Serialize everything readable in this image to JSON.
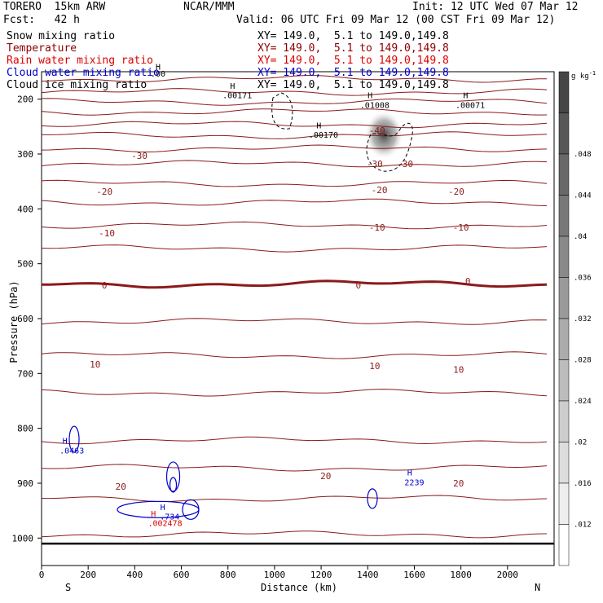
{
  "header": {
    "model": "TORERO  15km ARW",
    "org": "NCAR/MMM",
    "init": "Init: 12 UTC Wed 07 Mar 12",
    "fcst": "Fcst:   42 h",
    "valid": "Valid: 06 UTC Fri 09 Mar 12 (00 CST Fri 09 Mar 12)"
  },
  "fields": [
    {
      "name": "Snow mixing ratio",
      "xy": "XY= 149.0,  5.1 to 149.0,149.8",
      "color": "#000000"
    },
    {
      "name": "Temperature",
      "xy": "XY= 149.0,  5.1 to 149.0,149.8",
      "color": "#8b0000"
    },
    {
      "name": "Rain water mixing ratio",
      "xy": "XY= 149.0,  5.1 to 149.0,149.8",
      "color": "#dd0000"
    },
    {
      "name": "Cloud water mixing ratio",
      "xy": "XY= 149.0,  5.1 to 149.0,149.8",
      "color": "#0000cc"
    },
    {
      "name": "Cloud ice mixing ratio",
      "xy": "XY= 149.0,  5.1 to 149.0,149.8",
      "color": "#000000"
    }
  ],
  "chart_data": {
    "type": "contour",
    "xlabel": "Distance (km)",
    "ylabel": "Pressure (hPa)",
    "xlim": [
      0,
      2200
    ],
    "ylim": [
      1050,
      150
    ],
    "xticks": [
      0,
      200,
      400,
      600,
      800,
      1000,
      1200,
      1400,
      1600,
      1800,
      2000
    ],
    "yticks": [
      200,
      300,
      400,
      500,
      600,
      700,
      800,
      900,
      1000
    ],
    "x_end_labels": {
      "left": "S",
      "right": "N"
    },
    "colorbar": {
      "unit": "g kg",
      "unit_exp": "-1",
      "ticks": [
        ".012",
        ".016",
        ".02",
        ".024",
        ".028",
        ".032",
        ".036",
        ".04",
        ".044",
        ".048"
      ]
    },
    "temperature_levels_hpa": [
      163,
      187,
      205,
      223,
      246,
      266,
      290,
      318,
      354,
      388,
      430,
      472,
      537,
      605,
      667,
      735,
      822,
      872,
      928,
      993
    ],
    "temperature_labels": [
      {
        "text": "-40",
        "x": 1440,
        "p": 257
      },
      {
        "text": "-30",
        "x": 420,
        "p": 303
      },
      {
        "text": "-30",
        "x": 1430,
        "p": 318
      },
      {
        "text": "-30",
        "x": 1560,
        "p": 318
      },
      {
        "text": "-20",
        "x": 270,
        "p": 368
      },
      {
        "text": "-20",
        "x": 1450,
        "p": 365
      },
      {
        "text": "-20",
        "x": 1780,
        "p": 368
      },
      {
        "text": "-10",
        "x": 280,
        "p": 444
      },
      {
        "text": "-10",
        "x": 1440,
        "p": 434
      },
      {
        "text": "-10",
        "x": 1800,
        "p": 434
      },
      {
        "text": "0",
        "x": 270,
        "p": 539
      },
      {
        "text": "0",
        "x": 1360,
        "p": 539
      },
      {
        "text": "0",
        "x": 1830,
        "p": 532
      },
      {
        "text": "10",
        "x": 230,
        "p": 683
      },
      {
        "text": "10",
        "x": 1430,
        "p": 686
      },
      {
        "text": "10",
        "x": 1790,
        "p": 693
      },
      {
        "text": "20",
        "x": 340,
        "p": 906
      },
      {
        "text": "20",
        "x": 1220,
        "p": 887
      },
      {
        "text": "20",
        "x": 1790,
        "p": 900
      }
    ],
    "maxima_labels": [
      {
        "text": "H",
        "x": 820,
        "p": 175,
        "color": "#000000"
      },
      {
        "text": ".00171",
        "x": 840,
        "p": 192,
        "color": "#000000"
      },
      {
        "text": "H",
        "x": 1410,
        "p": 192,
        "color": "#000000"
      },
      {
        "text": ".01008",
        "x": 1430,
        "p": 210,
        "color": "#000000"
      },
      {
        "text": "H",
        "x": 1820,
        "p": 192,
        "color": "#000000"
      },
      {
        "text": ".00071",
        "x": 1840,
        "p": 210,
        "color": "#000000"
      },
      {
        "text": "H",
        "x": 1190,
        "p": 247,
        "color": "#000000"
      },
      {
        "text": ".00170",
        "x": 1210,
        "p": 264,
        "color": "#000000"
      },
      {
        "text": ".00",
        "x": 500,
        "p": 153,
        "color": "#000000"
      },
      {
        "text": "H",
        "x": 500,
        "p": 140,
        "color": "#000000"
      },
      {
        "text": "H",
        "x": 100,
        "p": 822,
        "color": "#0000cc"
      },
      {
        "text": ".0463",
        "x": 130,
        "p": 840,
        "color": "#0000cc"
      },
      {
        "text": "H",
        "x": 1580,
        "p": 880,
        "color": "#0000cc"
      },
      {
        "text": "2239",
        "x": 1600,
        "p": 898,
        "color": "#0000cc"
      },
      {
        "text": "H",
        "x": 520,
        "p": 943,
        "color": "#0000cc"
      },
      {
        "text": ".734",
        "x": 550,
        "p": 960,
        "color": "#0000cc"
      },
      {
        "text": "H",
        "x": 480,
        "p": 955,
        "color": "#dd0000"
      },
      {
        "text": ".002478",
        "x": 530,
        "p": 972,
        "color": "#dd0000"
      }
    ]
  }
}
